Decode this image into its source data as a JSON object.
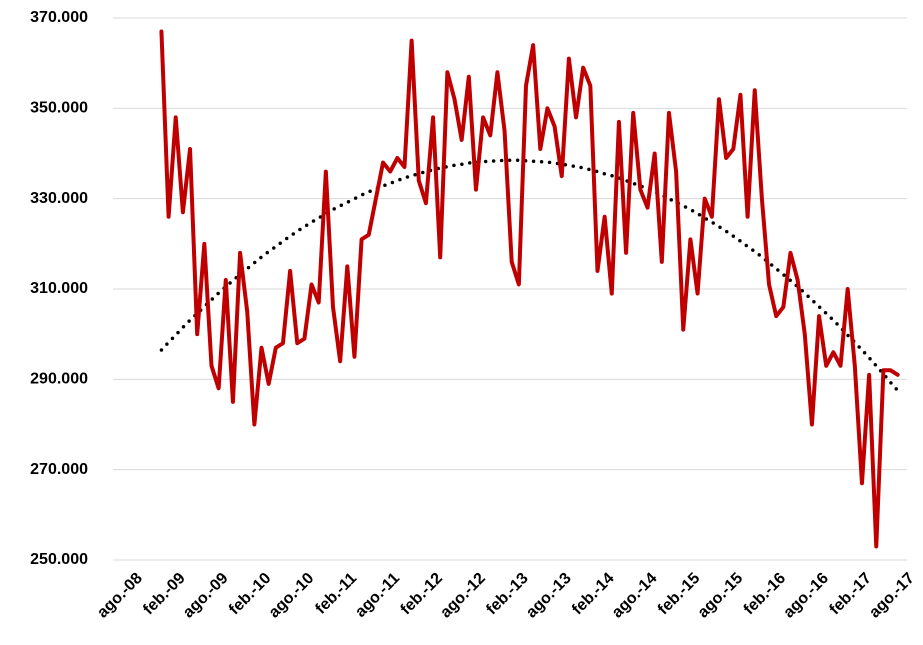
{
  "chart_data": {
    "type": "line",
    "categories": [
      "ago.-08",
      null,
      null,
      null,
      null,
      null,
      "feb.-09",
      null,
      null,
      null,
      null,
      null,
      "ago.-09",
      null,
      null,
      null,
      null,
      null,
      "feb.-10",
      null,
      null,
      null,
      null,
      null,
      "ago.-10",
      null,
      null,
      null,
      null,
      null,
      "feb.-11",
      null,
      null,
      null,
      null,
      null,
      "ago.-11",
      null,
      null,
      null,
      null,
      null,
      "feb.-12",
      null,
      null,
      null,
      null,
      null,
      "ago.-12",
      null,
      null,
      null,
      null,
      null,
      "feb.-13",
      null,
      null,
      null,
      null,
      null,
      "ago.-13",
      null,
      null,
      null,
      null,
      null,
      "feb.-14",
      null,
      null,
      null,
      null,
      null,
      "ago.-14",
      null,
      null,
      null,
      null,
      null,
      "feb.-15",
      null,
      null,
      null,
      null,
      null,
      "ago.-15",
      null,
      null,
      null,
      null,
      null,
      "feb.-16",
      null,
      null,
      null,
      null,
      null,
      "ago.-16",
      null,
      null,
      null,
      null,
      null,
      "feb.-17",
      null,
      null,
      null,
      null,
      null,
      "ago.-17"
    ],
    "series": [
      {
        "color": "#c00000",
        "line_style": "solid",
        "values": [
          null,
          null,
          null,
          367000,
          326000,
          348000,
          327000,
          341000,
          300000,
          320000,
          293000,
          288000,
          312000,
          285000,
          318000,
          305000,
          280000,
          297000,
          289000,
          297000,
          298000,
          314000,
          298000,
          299000,
          311000,
          307000,
          336000,
          306000,
          294000,
          315000,
          295000,
          321000,
          322000,
          330000,
          338000,
          336000,
          339000,
          337000,
          365000,
          334000,
          329000,
          348000,
          317000,
          358000,
          352000,
          343000,
          357000,
          332000,
          348000,
          344000,
          358000,
          345000,
          316000,
          311000,
          355000,
          364000,
          341000,
          350000,
          346000,
          335000,
          361000,
          348000,
          359000,
          355000,
          314000,
          326000,
          309000,
          347000,
          318000,
          349000,
          332000,
          328000,
          340000,
          316000,
          349000,
          336000,
          301000,
          321000,
          309000,
          330000,
          326000,
          352000,
          339000,
          341000,
          353000,
          326000,
          354000,
          330000,
          311000,
          304000,
          306000,
          318000,
          312000,
          300000,
          280000,
          304000,
          293000,
          296000,
          293000,
          310000,
          293000,
          267000,
          291000,
          253000,
          292000,
          292000,
          291000,
          null,
          null
        ]
      },
      {
        "color": "#000000",
        "line_style": "dotted",
        "values": [
          null,
          null,
          null,
          296500,
          298200,
          299800,
          301500,
          303100,
          304600,
          306100,
          307600,
          309100,
          310500,
          311900,
          313200,
          314500,
          315800,
          317100,
          318300,
          319400,
          320600,
          321700,
          322800,
          323800,
          324800,
          325700,
          326700,
          327600,
          328400,
          329200,
          330000,
          330800,
          331500,
          332200,
          332800,
          333400,
          334000,
          334600,
          335100,
          335500,
          336000,
          336400,
          336800,
          337100,
          337400,
          337600,
          337900,
          338100,
          338200,
          338300,
          338400,
          338500,
          338500,
          338500,
          338400,
          338300,
          338200,
          338100,
          337900,
          337600,
          337400,
          337100,
          336800,
          336400,
          336000,
          335500,
          335100,
          334600,
          334000,
          333400,
          332800,
          332200,
          331500,
          330800,
          330000,
          329200,
          328400,
          327600,
          326700,
          325700,
          324800,
          323800,
          322800,
          321700,
          320600,
          319400,
          318300,
          317100,
          315800,
          314500,
          313200,
          311900,
          310500,
          309100,
          307600,
          306100,
          304600,
          303100,
          301500,
          299800,
          298200,
          296500,
          294800,
          293000,
          291200,
          289300,
          287500,
          null,
          null
        ]
      }
    ],
    "ylim": [
      250000,
      370000
    ],
    "yticks": [
      {
        "value": 250000,
        "label": "250.000"
      },
      {
        "value": 270000,
        "label": "270.000"
      },
      {
        "value": 290000,
        "label": "290.000"
      },
      {
        "value": 310000,
        "label": "310.000"
      },
      {
        "value": 330000,
        "label": "330.000"
      },
      {
        "value": 350000,
        "label": "350.000"
      },
      {
        "value": 370000,
        "label": "370.000"
      }
    ],
    "grid": true
  }
}
